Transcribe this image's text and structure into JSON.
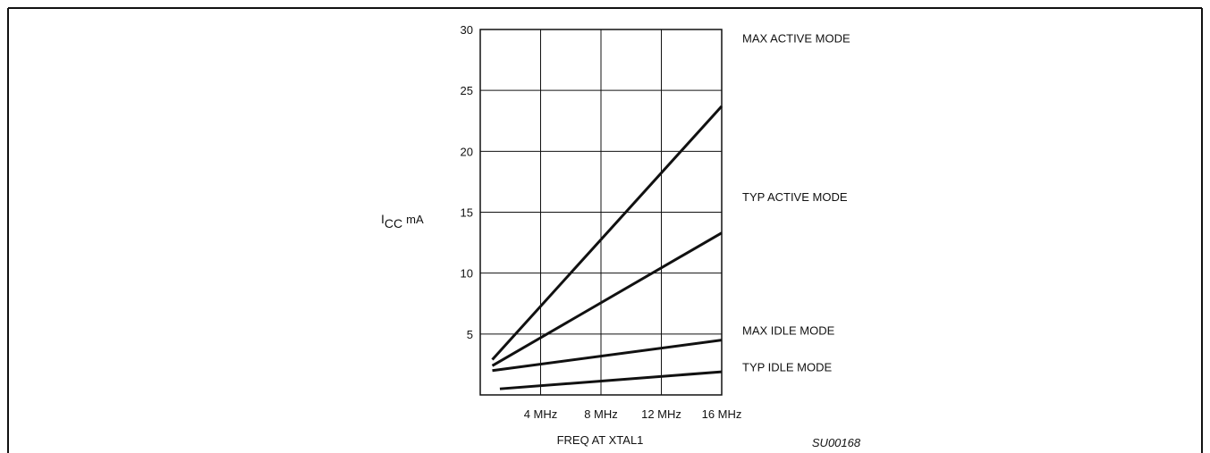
{
  "figure_id": "SU00168",
  "chart_data": {
    "type": "line",
    "title": "",
    "xlabel": "FREQ AT XTAL1",
    "ylabel_main": "I",
    "ylabel_sub": "CC",
    "ylabel_unit": "mA",
    "xlim": [
      0,
      16
    ],
    "ylim": [
      0,
      30
    ],
    "grid": true,
    "x_ticks": [
      {
        "value": 4,
        "label": "4 MHz"
      },
      {
        "value": 8,
        "label": "8 MHz"
      },
      {
        "value": 12,
        "label": "12 MHz"
      },
      {
        "value": 16,
        "label": "16 MHz"
      }
    ],
    "y_ticks": [
      {
        "value": 5,
        "label": "5"
      },
      {
        "value": 10,
        "label": "10"
      },
      {
        "value": 15,
        "label": "15"
      },
      {
        "value": 20,
        "label": "20"
      },
      {
        "value": 25,
        "label": "25"
      },
      {
        "value": 30,
        "label": "30"
      }
    ],
    "series": [
      {
        "name": "MAX ACTIVE MODE",
        "x": [
          0.8,
          16
        ],
        "y": [
          2.9,
          23.7
        ],
        "label_y": 29.3
      },
      {
        "name": "TYP ACTIVE MODE",
        "x": [
          0.8,
          16
        ],
        "y": [
          2.4,
          13.3
        ],
        "label_y": 16.3
      },
      {
        "name": "MAX IDLE MODE",
        "x": [
          0.8,
          16
        ],
        "y": [
          2.0,
          4.5
        ],
        "label_y": 5.3
      },
      {
        "name": "TYP IDLE MODE",
        "x": [
          1.3,
          16
        ],
        "y": [
          0.5,
          1.9
        ],
        "label_y": 2.3
      }
    ]
  }
}
